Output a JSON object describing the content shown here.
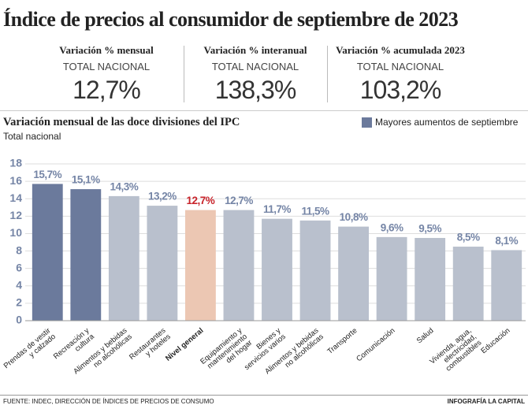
{
  "header": {
    "title": "Índice de precios al consumidor de septiembre de 2023",
    "kpis": [
      {
        "label": "Variación % mensual",
        "sub": "TOTAL NACIONAL",
        "value": "12,7%"
      },
      {
        "label": "Variación % interanual",
        "sub": "TOTAL NACIONAL",
        "value": "138,3%"
      },
      {
        "label": "Variación % acumulada 2023",
        "sub": "TOTAL NACIONAL",
        "value": "103,2%"
      }
    ]
  },
  "chart_data": {
    "type": "bar",
    "title": "Variación mensual de las doce divisiones del IPC",
    "subtitle": "Total nacional",
    "categories": [
      "Prendas de vestir\ny calzado",
      "Recreación y\ncultura",
      "Alimentos y bebidas\nno alcohólicas",
      "Restaurantes\ny hoteles",
      "Nivel general",
      "Equipamiento y\nmantenimiento\ndel hogar",
      "Bienes y\nservicios varios",
      "Alimentos y bebidas\nno alcohólicas",
      "Transporte",
      "Comunicación",
      "Salud",
      "Vivienda, agua,\nelectricidad,\ncombustibles",
      "Educación"
    ],
    "values": [
      15.7,
      15.1,
      14.3,
      13.2,
      12.7,
      12.7,
      11.7,
      11.5,
      10.8,
      9.6,
      9.5,
      8.5,
      8.1
    ],
    "value_labels": [
      "15,7%",
      "15,1%",
      "14,3%",
      "13,2%",
      "12,7%",
      "12,7%",
      "11,7%",
      "11,5%",
      "10,8%",
      "9,6%",
      "9,5%",
      "8,5%",
      "8,1%"
    ],
    "colors": [
      "#6b7a9c",
      "#6b7a9c",
      "#b9c0cd",
      "#b9c0cd",
      "#ecc7b3",
      "#b9c0cd",
      "#b9c0cd",
      "#b9c0cd",
      "#b9c0cd",
      "#b9c0cd",
      "#b9c0cd",
      "#b9c0cd",
      "#b9c0cd"
    ],
    "value_label_colors": [
      "#7585a6",
      "#7585a6",
      "#7585a6",
      "#7585a6",
      "#c8242b",
      "#7585a6",
      "#7585a6",
      "#7585a6",
      "#7585a6",
      "#7585a6",
      "#7585a6",
      "#7585a6",
      "#7585a6"
    ],
    "legend": {
      "name": "Mayores aumentos de septiembre",
      "color": "#6b7a9c"
    },
    "ylim": [
      0,
      18
    ],
    "yticks": [
      0,
      2,
      4,
      6,
      8,
      10,
      12,
      14,
      16,
      18
    ],
    "grid": true
  },
  "footer": {
    "source": "FUENTE:  INDEC, DIRECCIÓN DE ÍNDICES DE PRECIOS DE CONSUMO",
    "credit": "INFOGRAFÍA LA CAPITAL"
  }
}
